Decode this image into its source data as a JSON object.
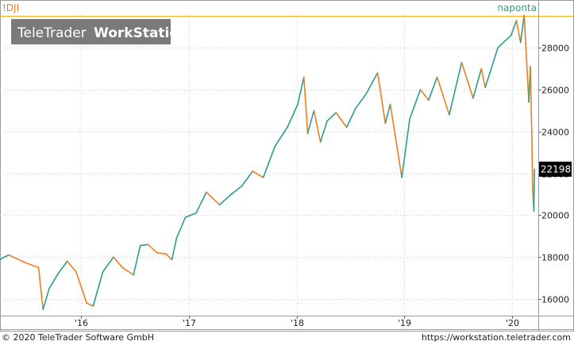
{
  "symbol": "!DJI",
  "period_label": "naponta",
  "watermark": {
    "brand_a": "TeleTrader",
    "brand_b": "WorkStation"
  },
  "last_value_label": "22198",
  "footer": {
    "copyright": "© 2020 TeleTrader Software GmbH",
    "url": "https://workstation.teletrader.com"
  },
  "colors": {
    "up": "#2a9d8f",
    "down": "#f07c1e",
    "accent_line": "#f5a623",
    "grid": "#c8c8c8"
  },
  "chart_data": {
    "type": "line",
    "title": "",
    "xlabel": "",
    "ylabel": "",
    "x_ticks": [
      "'16",
      "'17",
      "'18",
      "'19",
      "'20"
    ],
    "y_ticks": [
      16000,
      18000,
      20000,
      22000,
      24000,
      26000,
      28000
    ],
    "ylim": [
      15200,
      29600
    ],
    "xlim": [
      "2015-04-01",
      "2020-03-31"
    ],
    "grid": true,
    "last_value": 22198,
    "series": [
      {
        "points": [
          [
            "2015-04-01",
            17900
          ],
          [
            "2015-05-01",
            18100
          ],
          [
            "2015-06-01",
            17900
          ],
          [
            "2015-07-01",
            17700
          ],
          [
            "2015-08-10",
            17500
          ],
          [
            "2015-08-25",
            15500
          ],
          [
            "2015-09-15",
            16500
          ],
          [
            "2015-10-15",
            17200
          ],
          [
            "2015-11-15",
            17800
          ],
          [
            "2015-12-15",
            17300
          ],
          [
            "2016-01-20",
            15800
          ],
          [
            "2016-02-11",
            15660
          ],
          [
            "2016-03-15",
            17300
          ],
          [
            "2016-04-20",
            18000
          ],
          [
            "2016-05-20",
            17500
          ],
          [
            "2016-06-27",
            17150
          ],
          [
            "2016-07-20",
            18550
          ],
          [
            "2016-08-15",
            18600
          ],
          [
            "2016-09-15",
            18200
          ],
          [
            "2016-10-15",
            18150
          ],
          [
            "2016-11-04",
            17880
          ],
          [
            "2016-11-20",
            18900
          ],
          [
            "2016-12-20",
            19900
          ],
          [
            "2017-01-25",
            20100
          ],
          [
            "2017-03-01",
            21100
          ],
          [
            "2017-04-15",
            20500
          ],
          [
            "2017-05-25",
            21000
          ],
          [
            "2017-06-30",
            21400
          ],
          [
            "2017-08-05",
            22100
          ],
          [
            "2017-09-10",
            21800
          ],
          [
            "2017-10-20",
            23300
          ],
          [
            "2017-12-01",
            24200
          ],
          [
            "2018-01-05",
            25300
          ],
          [
            "2018-01-26",
            26600
          ],
          [
            "2018-02-08",
            23900
          ],
          [
            "2018-03-01",
            25000
          ],
          [
            "2018-03-23",
            23500
          ],
          [
            "2018-04-15",
            24500
          ],
          [
            "2018-05-15",
            24900
          ],
          [
            "2018-06-20",
            24200
          ],
          [
            "2018-07-20",
            25100
          ],
          [
            "2018-08-25",
            25800
          ],
          [
            "2018-10-03",
            26800
          ],
          [
            "2018-10-29",
            24400
          ],
          [
            "2018-11-15",
            25300
          ],
          [
            "2018-12-24",
            21800
          ],
          [
            "2019-01-20",
            24600
          ],
          [
            "2019-02-25",
            26000
          ],
          [
            "2019-03-25",
            25500
          ],
          [
            "2019-04-23",
            26600
          ],
          [
            "2019-06-03",
            24800
          ],
          [
            "2019-07-15",
            27300
          ],
          [
            "2019-08-23",
            25600
          ],
          [
            "2019-09-20",
            27000
          ],
          [
            "2019-10-03",
            26100
          ],
          [
            "2019-11-15",
            28000
          ],
          [
            "2019-12-30",
            28600
          ],
          [
            "2020-01-17",
            29300
          ],
          [
            "2020-01-31",
            28250
          ],
          [
            "2020-02-12",
            29550
          ],
          [
            "2020-02-28",
            25400
          ],
          [
            "2020-03-04",
            27100
          ],
          [
            "2020-03-09",
            23900
          ],
          [
            "2020-03-12",
            21200
          ],
          [
            "2020-03-16",
            20200
          ],
          [
            "2020-03-18",
            22198
          ]
        ]
      }
    ]
  }
}
